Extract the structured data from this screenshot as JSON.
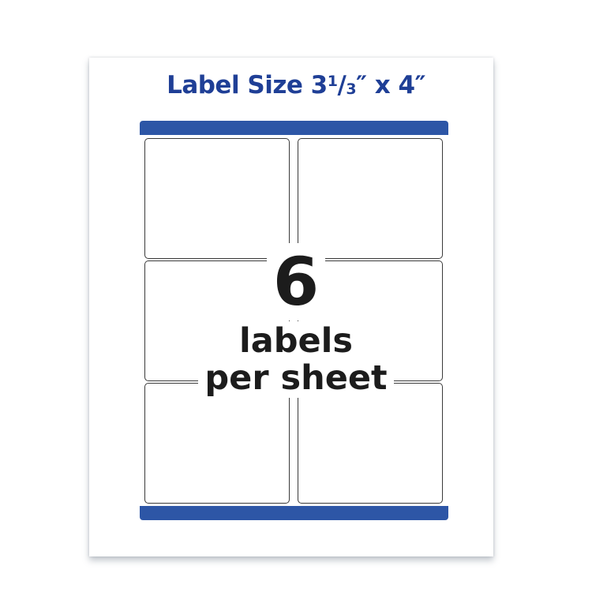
{
  "title": {
    "prefix": "Label Size 3",
    "frac_num": "1",
    "frac_slash": "/",
    "frac_den": "3",
    "suffix": "″ x 4″"
  },
  "count": "6",
  "caption_line1": "labels",
  "caption_line2": "per sheet",
  "colors": {
    "brand_blue": "#2d56a6",
    "title_blue": "#1f3f96",
    "text": "#1c1c1c"
  }
}
